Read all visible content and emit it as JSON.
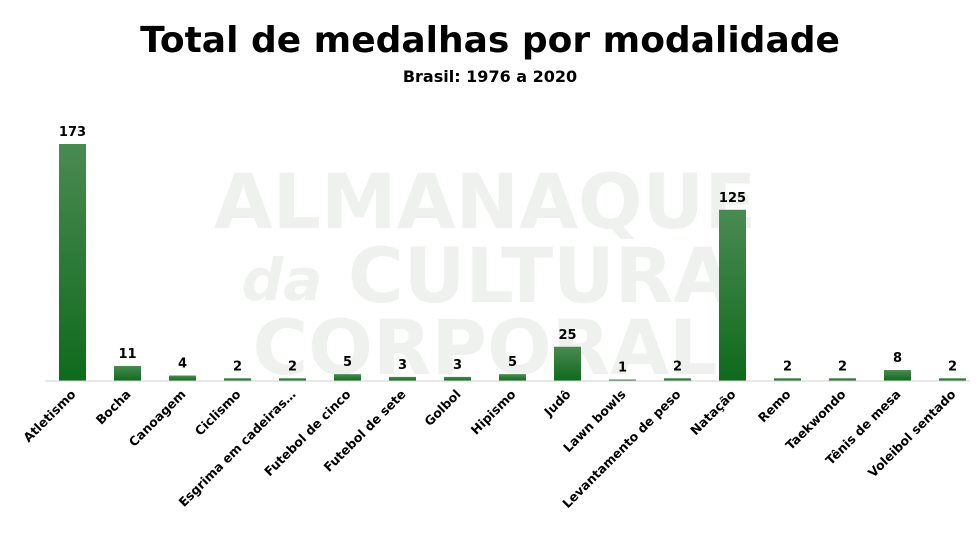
{
  "watermark": {
    "line1": "ALMANAQUE",
    "line2_script": "da",
    "line2": "CULTURA",
    "line3": "CORPORAL"
  },
  "colors": {
    "bar_top": "#4a8a52",
    "bar_bottom": "#0f6a1c",
    "axis": "#d0d0d0"
  },
  "chart_data": {
    "type": "bar",
    "title": "Total de medalhas por modalidade",
    "subtitle": "Brasil: 1976 a 2020",
    "xlabel": "",
    "ylabel": "",
    "ylim": [
      0,
      173
    ],
    "grid": false,
    "legend": "none",
    "categories": [
      "Atletismo",
      "Bocha",
      "Canoagem",
      "Ciclismo",
      "Esgrima em cadeiras…",
      "Futebol de cinco",
      "Futebol de sete",
      "Golbol",
      "Hipismo",
      "Judô",
      "Lawn bowls",
      "Levantamento de peso",
      "Natação",
      "Remo",
      "Taekwondo",
      "Tênis de mesa",
      "Voleibol sentado"
    ],
    "values": [
      173,
      11,
      4,
      2,
      2,
      5,
      3,
      3,
      5,
      25,
      1,
      2,
      125,
      2,
      2,
      8,
      2
    ]
  }
}
